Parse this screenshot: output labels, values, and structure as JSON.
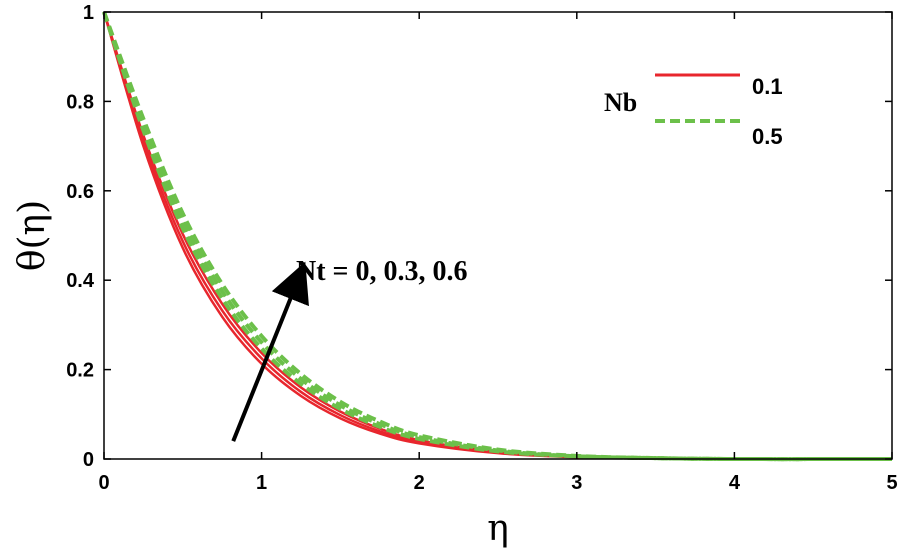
{
  "chart_data": {
    "type": "line",
    "xlabel": "η",
    "ylabel": "θ(η)",
    "xlim": [
      0,
      5
    ],
    "ylim": [
      0,
      1
    ],
    "xticks": [
      "0",
      "1",
      "2",
      "3",
      "4",
      "5"
    ],
    "yticks": [
      "0",
      "0.2",
      "0.4",
      "0.6",
      "0.8",
      "1"
    ],
    "grid": false,
    "legend": {
      "title": "Nb",
      "placement": "top-right",
      "entries": [
        {
          "label": "0.1",
          "color": "#e8262d",
          "style": "solid"
        },
        {
          "label": "0.5",
          "color": "#6cc04a",
          "style": "dashed"
        }
      ]
    },
    "annotation": {
      "text": "Nt = 0, 0.3, 0.6",
      "arrow_from": [
        0.82,
        0.04
      ],
      "arrow_to": [
        1.23,
        0.4
      ]
    },
    "x": [
      0,
      0.25,
      0.5,
      0.75,
      1.0,
      1.25,
      1.5,
      1.75,
      2.0,
      2.5,
      3.0,
      3.5,
      4.0,
      5.0
    ],
    "series": [
      {
        "group": "0.1",
        "color": "#e8262d",
        "style": "solid",
        "values": [
          1,
          0.7,
          0.472,
          0.318,
          0.213,
          0.141,
          0.091,
          0.057,
          0.035,
          0.013,
          0.004,
          0.001,
          0,
          0
        ]
      },
      {
        "group": "0.1",
        "color": "#e8262d",
        "style": "solid",
        "values": [
          1,
          0.712,
          0.487,
          0.332,
          0.225,
          0.15,
          0.098,
          0.062,
          0.038,
          0.014,
          0.005,
          0.001,
          0,
          0
        ]
      },
      {
        "group": "0.1",
        "color": "#e8262d",
        "style": "solid",
        "values": [
          1,
          0.724,
          0.503,
          0.347,
          0.237,
          0.16,
          0.106,
          0.068,
          0.042,
          0.016,
          0.005,
          0.001,
          0,
          0
        ]
      },
      {
        "group": "0.5",
        "color": "#6cc04a",
        "style": "dashed",
        "values": [
          1,
          0.735,
          0.516,
          0.359,
          0.247,
          0.168,
          0.112,
          0.072,
          0.045,
          0.017,
          0.006,
          0.002,
          0,
          0
        ]
      },
      {
        "group": "0.5",
        "color": "#6cc04a",
        "style": "dashed",
        "values": [
          1,
          0.748,
          0.532,
          0.375,
          0.261,
          0.179,
          0.12,
          0.078,
          0.049,
          0.019,
          0.006,
          0.002,
          0,
          0
        ]
      },
      {
        "group": "0.5",
        "color": "#6cc04a",
        "style": "dashed",
        "values": [
          1,
          0.761,
          0.549,
          0.391,
          0.275,
          0.19,
          0.128,
          0.084,
          0.053,
          0.021,
          0.007,
          0.002,
          0,
          0
        ]
      }
    ]
  }
}
